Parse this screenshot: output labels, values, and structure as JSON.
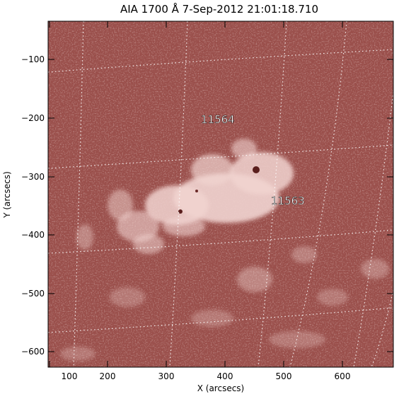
{
  "title": "AIA 1700 Å   7-Sep-2012 21:01:18.710",
  "xlabel": "X (arcsecs)",
  "ylabel": "Y (arcsecs)",
  "x_ticks": [
    "100",
    "200",
    "300",
    "400",
    "500",
    "600"
  ],
  "y_ticks": [
    "−100",
    "−200",
    "−300",
    "−400",
    "−500",
    "−600"
  ],
  "annotations": [
    "11564",
    "11563"
  ],
  "colors": {
    "background": "#9a4f4b",
    "bright": "#f4dcd8",
    "frame": "#000000",
    "grid": "#ffffff"
  }
}
